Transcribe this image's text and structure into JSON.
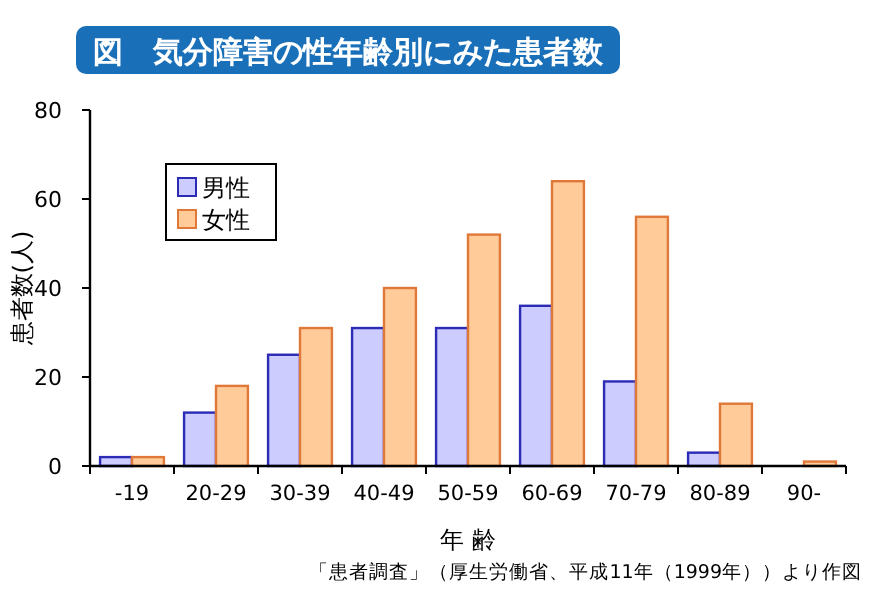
{
  "chart_data": {
    "type": "bar",
    "title": "図　気分障害の性年齢別にみた患者数",
    "xlabel": "年 齢",
    "ylabel": "患者数(人)",
    "categories": [
      "-19",
      "20-29",
      "30-39",
      "40-49",
      "50-59",
      "60-69",
      "70-79",
      "80-89",
      "90-"
    ],
    "series": [
      {
        "name": "男性",
        "color": "#ccccff",
        "values": [
          2,
          12,
          25,
          31,
          31,
          36,
          19,
          3,
          0
        ]
      },
      {
        "name": "女性",
        "color": "#ffcc99",
        "values": [
          2,
          18,
          31,
          40,
          52,
          64,
          56,
          14,
          1
        ]
      }
    ],
    "ylim": [
      0,
      80
    ],
    "yticks": [
      0,
      20,
      40,
      60,
      80
    ],
    "grid": false,
    "legend": "top left",
    "annotations": [
      "「患者調査」（厚生労働省、平成11年（1999年））より作図"
    ]
  }
}
